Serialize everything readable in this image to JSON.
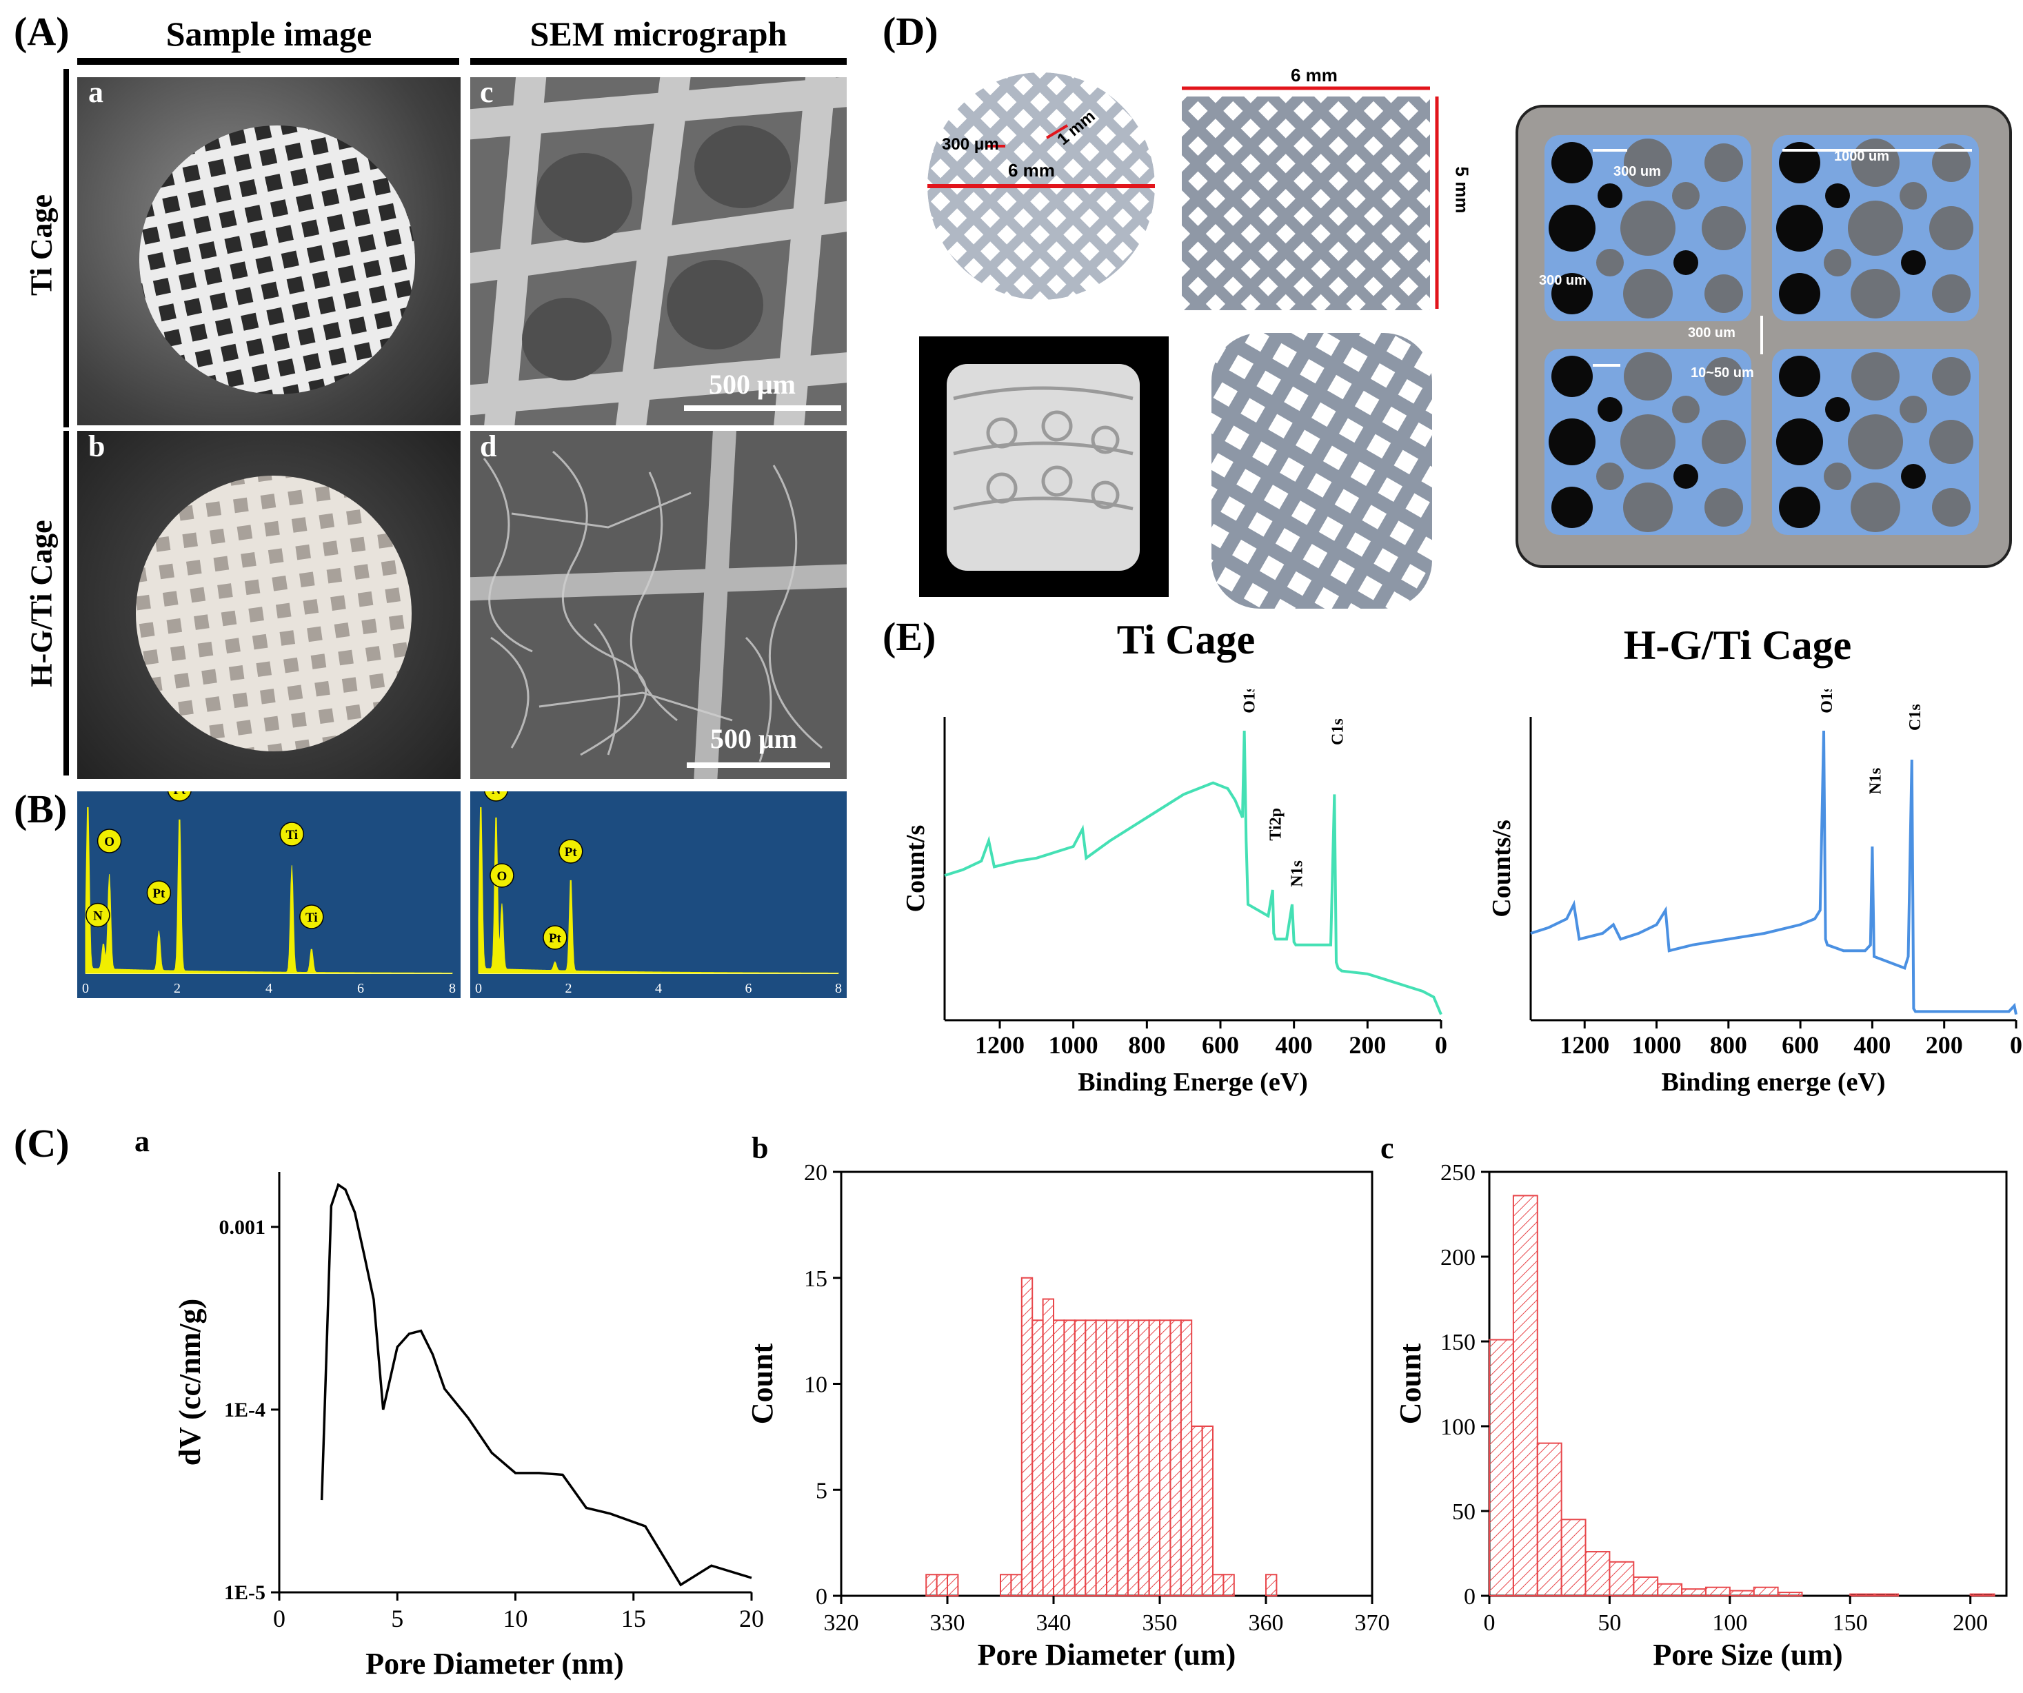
{
  "panel_labels": {
    "A": "(A)",
    "B": "(B)",
    "C": "(C)",
    "D": "(D)",
    "E": "(E)"
  },
  "panelA": {
    "col_sample": "Sample image",
    "col_sem": "SEM micrograph",
    "row_ti": "Ti Cage",
    "row_hg": "H-G/Ti Cage",
    "sub_a": "a",
    "sub_b": "b",
    "sub_c": "c",
    "sub_d": "d",
    "scale_c": "500 μm",
    "scale_d": "500 μm"
  },
  "panelB": {
    "left_peaks": [
      "N",
      "O",
      "Pt",
      "Pt",
      "Ti",
      "Ti"
    ],
    "right_peaks": [
      "N",
      "O",
      "Pt",
      "Pt"
    ],
    "ticks": [
      "0",
      "2",
      "4",
      "6",
      "8"
    ],
    "bg_color": "#1c4c80",
    "peak_color": "#f1ee00"
  },
  "panelD": {
    "dim_6mm_top": "6 mm",
    "dim_6mm_circle": "6 mm",
    "dim_1mm": "1 mm",
    "dim_300um": "300 μm",
    "dim_5mm": "5 mm",
    "sch_300um_a": "300 um",
    "sch_1000um": "1000 um",
    "sch_300um_b": "300 um",
    "sch_300um_c": "300 um",
    "sch_10_50um": "10~50 um"
  },
  "chart_data": [
    {
      "id": "E-left",
      "type": "line",
      "title": "Ti Cage",
      "xlabel": "Binding Energe (eV)",
      "ylabel": "Count/s",
      "xlim": [
        1350,
        0
      ],
      "xticks": [
        "1200",
        "1000",
        "800",
        "600",
        "400",
        "200",
        "0"
      ],
      "color": "#44e0b4",
      "peaks": [
        "O1s",
        "Ti2p",
        "N1s",
        "C1s"
      ],
      "series": [
        {
          "x": [
            1350,
            1300,
            1250,
            1230,
            1215,
            1150,
            1100,
            1050,
            1000,
            975,
            965,
            900,
            800,
            700,
            620,
            580,
            560,
            540,
            535,
            530,
            525,
            470,
            458,
            455,
            450,
            420,
            405,
            400,
            395,
            300,
            290,
            285,
            280,
            270,
            200,
            150,
            100,
            50,
            20,
            0
          ],
          "y": [
            0.5,
            0.52,
            0.55,
            0.62,
            0.53,
            0.55,
            0.56,
            0.58,
            0.6,
            0.66,
            0.56,
            0.62,
            0.7,
            0.78,
            0.82,
            0.8,
            0.76,
            0.7,
            1.0,
            0.62,
            0.4,
            0.36,
            0.45,
            0.3,
            0.28,
            0.28,
            0.4,
            0.27,
            0.26,
            0.26,
            0.78,
            0.2,
            0.18,
            0.17,
            0.16,
            0.14,
            0.12,
            0.1,
            0.08,
            0.02
          ]
        }
      ]
    },
    {
      "id": "E-right",
      "type": "line",
      "title": "H-G/Ti Cage",
      "xlabel": "Binding energe (eV)",
      "ylabel": "Counts/s",
      "xlim": [
        1350,
        0
      ],
      "xticks": [
        "1200",
        "1000",
        "800",
        "600",
        "400",
        "200",
        "0"
      ],
      "color": "#4a90e2",
      "peaks": [
        "O1s",
        "N1s",
        "C1s"
      ],
      "series": [
        {
          "x": [
            1350,
            1300,
            1250,
            1230,
            1215,
            1150,
            1120,
            1100,
            1050,
            1000,
            975,
            965,
            900,
            800,
            700,
            600,
            560,
            545,
            535,
            530,
            525,
            480,
            420,
            405,
            400,
            395,
            310,
            300,
            290,
            285,
            280,
            270,
            200,
            100,
            20,
            5,
            0
          ],
          "y": [
            0.3,
            0.32,
            0.35,
            0.4,
            0.28,
            0.3,
            0.33,
            0.28,
            0.3,
            0.33,
            0.38,
            0.24,
            0.26,
            0.28,
            0.3,
            0.33,
            0.35,
            0.38,
            1.0,
            0.28,
            0.26,
            0.24,
            0.24,
            0.26,
            0.6,
            0.22,
            0.18,
            0.22,
            0.9,
            0.04,
            0.03,
            0.03,
            0.03,
            0.03,
            0.03,
            0.05,
            0.02
          ]
        }
      ]
    },
    {
      "id": "C-a",
      "type": "line",
      "xlabel": "Pore Diameter (nm)",
      "ylabel": "dV (cc/nm/g)",
      "xlim": [
        0,
        20
      ],
      "ylim": [
        1e-05,
        0.002
      ],
      "yscale": "log",
      "xticks": [
        "0",
        "5",
        "10",
        "15",
        "20"
      ],
      "yticks": [
        "1E-5",
        "1E-4",
        "0.001"
      ],
      "series": [
        {
          "x": [
            1.8,
            2.2,
            2.5,
            2.8,
            3.2,
            3.6,
            4.0,
            4.4,
            5.0,
            5.5,
            6.0,
            6.5,
            7.0,
            8.0,
            9.0,
            10.0,
            11.0,
            12.0,
            13.0,
            14.0,
            15.5,
            17.0,
            18.3,
            20.0
          ],
          "y": [
            3.2e-05,
            0.0013,
            0.0017,
            0.0016,
            0.0012,
            0.0007,
            0.0004,
            0.0001,
            0.00022,
            0.00026,
            0.00027,
            0.0002,
            0.00013,
            9e-05,
            5.8e-05,
            4.5e-05,
            4.5e-05,
            4.4e-05,
            2.9e-05,
            2.7e-05,
            2.3e-05,
            1.1e-05,
            1.4e-05,
            1.2e-05
          ]
        }
      ]
    },
    {
      "id": "C-b",
      "type": "bar",
      "xlabel": "Pore Diameter (um)",
      "ylabel": "Count",
      "xlim": [
        320,
        370
      ],
      "ylim": [
        0,
        20
      ],
      "xticks": [
        "320",
        "330",
        "340",
        "350",
        "360",
        "370"
      ],
      "yticks": [
        "0",
        "5",
        "10",
        "15",
        "20"
      ],
      "bin_width": 1,
      "bin_start": [
        328,
        329,
        330,
        331,
        332,
        333,
        334,
        335,
        336,
        337,
        338,
        339,
        340,
        341,
        342,
        343,
        344,
        345,
        346,
        347,
        348,
        349,
        350,
        351,
        352,
        353,
        354,
        355,
        356,
        357,
        358,
        359,
        360,
        361
      ],
      "values": [
        1,
        1,
        1,
        0,
        0,
        0,
        0,
        1,
        1,
        15,
        13,
        14,
        13,
        13,
        13,
        13,
        13,
        13,
        13,
        13,
        13,
        13,
        13,
        13,
        13,
        8,
        8,
        1,
        1,
        0,
        0,
        0,
        1,
        0
      ],
      "color": "#e8474b"
    },
    {
      "id": "C-c",
      "type": "bar",
      "xlabel": "Pore Size (um)",
      "ylabel": "Count",
      "xlim": [
        0,
        215
      ],
      "ylim": [
        0,
        250
      ],
      "xticks": [
        "0",
        "50",
        "100",
        "150",
        "200"
      ],
      "yticks": [
        "0",
        "50",
        "100",
        "150",
        "200",
        "250"
      ],
      "bin_width": 10,
      "bin_start": [
        0,
        10,
        20,
        30,
        40,
        50,
        60,
        70,
        80,
        90,
        100,
        110,
        120,
        130,
        140,
        150,
        160,
        170,
        180,
        190,
        200
      ],
      "values": [
        151,
        236,
        90,
        45,
        26,
        20,
        11,
        7,
        4,
        5,
        3,
        5,
        2,
        0,
        0,
        1,
        1,
        0,
        0,
        0,
        1
      ],
      "color": "#e8474b"
    }
  ],
  "panelE": {
    "left_title": "Ti Cage",
    "right_title": "H-G/Ti Cage"
  },
  "panelC": {
    "sub_a": "a",
    "sub_b": "b",
    "sub_c": "c"
  }
}
